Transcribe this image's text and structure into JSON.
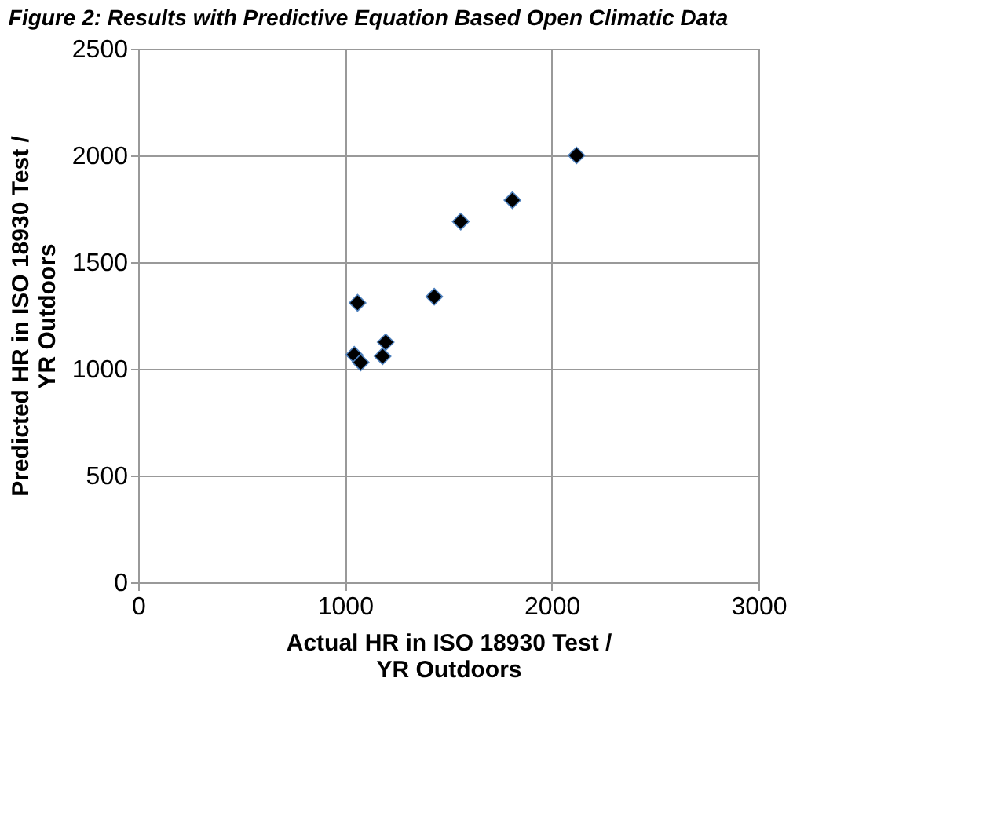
{
  "chart_data": {
    "type": "scatter",
    "title": "Figure 2: Results with Predictive Equation Based Open Climatic Data",
    "xlabel": "Actual HR in ISO 18930 Test / YR Outdoors",
    "ylabel": "Predicted HR in ISO 18930 Test / YR Outdoors",
    "x": [
      1061,
      1045,
      1076,
      1197,
      1182,
      1432,
      1560,
      1810,
      2120
    ],
    "series": [
      {
        "color": "#000000",
        "values": [
          1309,
          1066,
          1030,
          1125,
          1059,
          1338,
          1690,
          1790,
          2000
        ]
      }
    ],
    "xlim": [
      0,
      3000
    ],
    "xticks": [
      0,
      1000,
      2000,
      3000
    ],
    "ylim": [
      0,
      2500
    ],
    "yticks": [
      0,
      500,
      1000,
      1500,
      2000,
      2500
    ],
    "grid": true,
    "marker": "diamond"
  }
}
